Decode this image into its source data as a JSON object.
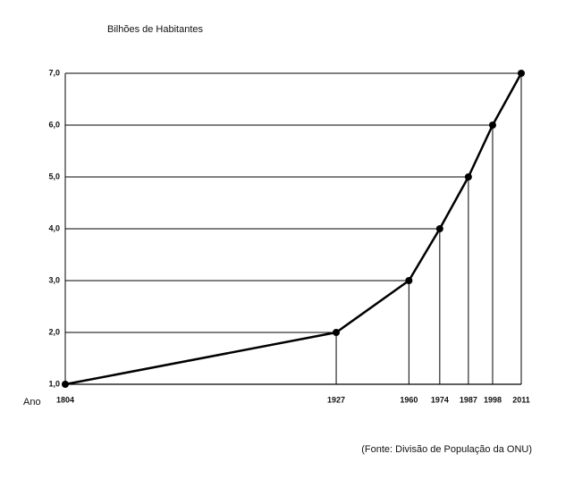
{
  "chart_data": {
    "type": "line",
    "title": "Bilhões de Habitantes",
    "x_label": "Ano",
    "source": "(Fonte: Divisão de População da ONU)",
    "x": [
      1804,
      1927,
      1960,
      1974,
      1987,
      1998,
      2011
    ],
    "series": [
      {
        "color": "#000000",
        "values": [
          1,
          2,
          3,
          4,
          5,
          6,
          7
        ]
      }
    ],
    "xlim": [
      1804,
      2011
    ],
    "ylim": [
      1,
      7
    ],
    "xticks": [
      1804,
      1927,
      1960,
      1974,
      1987,
      1998,
      2011
    ],
    "yticks": [
      {
        "value": 1,
        "label": "1,0"
      },
      {
        "value": 2,
        "label": "2,0"
      },
      {
        "value": 3,
        "label": "3,0"
      },
      {
        "value": 4,
        "label": "4,0"
      },
      {
        "value": 5,
        "label": "5,0"
      },
      {
        "value": 6,
        "label": "6,0"
      },
      {
        "value": 7,
        "label": "7,0"
      }
    ],
    "grid": true
  }
}
